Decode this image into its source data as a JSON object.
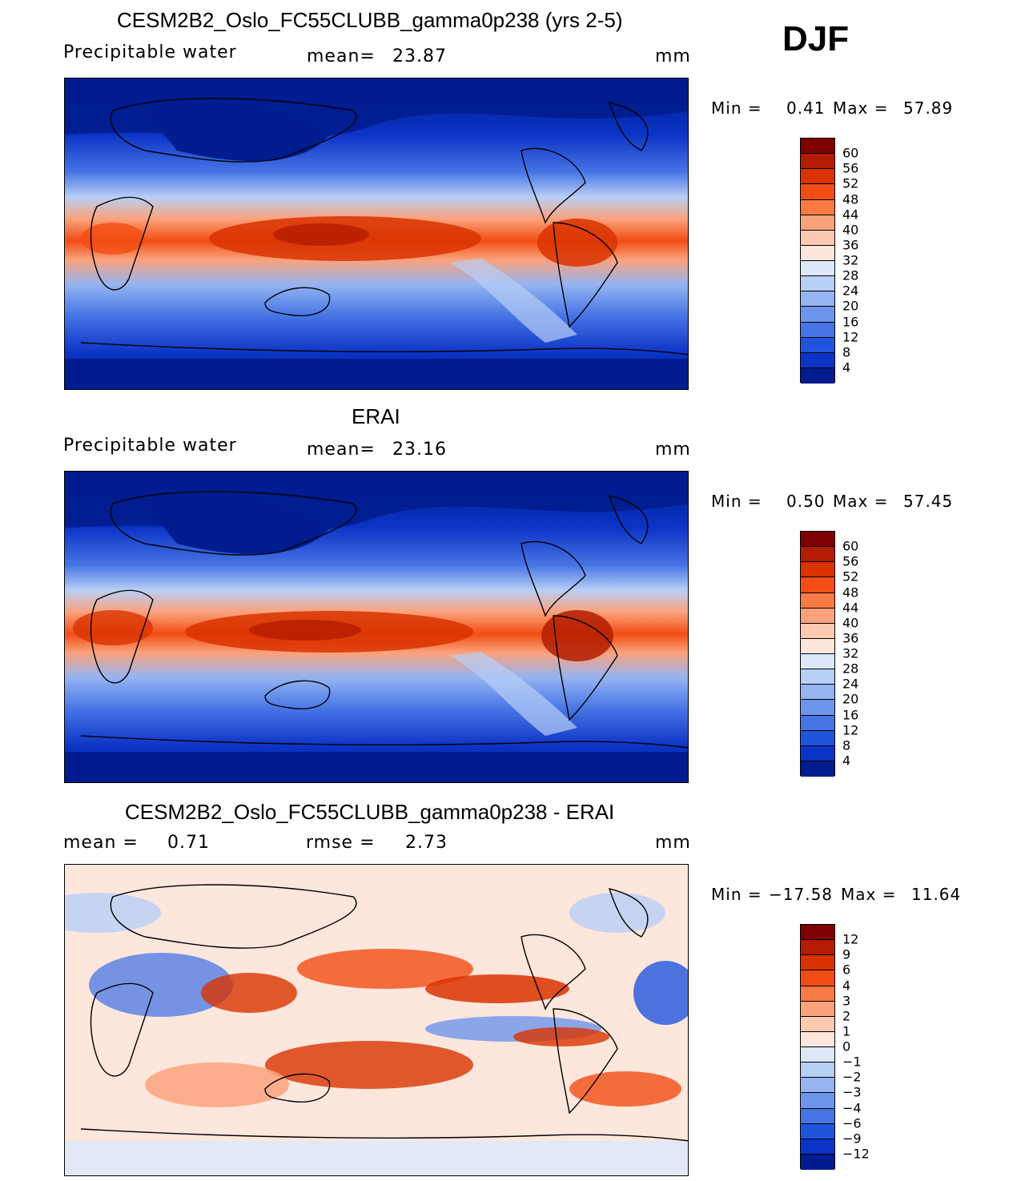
{
  "season": "DJF",
  "panels": [
    {
      "title": "CESM2B2_Oslo_FC55CLUBB_gamma0p238 (yrs 2-5)",
      "variable": "Precipitable water",
      "stat_label": "mean=",
      "stat_value": "23.87",
      "units": "mm",
      "min_label": "Min =",
      "min_value": "0.41",
      "max_label": "Max =",
      "max_value": "57.89",
      "colorbar_labels": [
        "60",
        "56",
        "52",
        "48",
        "44",
        "40",
        "36",
        "32",
        "28",
        "24",
        "20",
        "16",
        "12",
        "8",
        "4"
      ],
      "colors": [
        "#7e0000",
        "#b31c00",
        "#d93300",
        "#f24d14",
        "#fa7a45",
        "#fba27c",
        "#fbcab0",
        "#fde6dc",
        "#dce8fa",
        "#b8cff6",
        "#94b4f2",
        "#6e95ec",
        "#4775e5",
        "#1f55dd",
        "#0b34c6",
        "#001c8e"
      ]
    },
    {
      "title": "ERAI",
      "variable": "Precipitable water",
      "stat_label": "mean=",
      "stat_value": "23.16",
      "units": "mm",
      "min_label": "Min =",
      "min_value": "0.50",
      "max_label": "Max =",
      "max_value": "57.45",
      "colorbar_labels": [
        "60",
        "56",
        "52",
        "48",
        "44",
        "40",
        "36",
        "32",
        "28",
        "24",
        "20",
        "16",
        "12",
        "8",
        "4"
      ],
      "colors": [
        "#7e0000",
        "#b31c00",
        "#d93300",
        "#f24d14",
        "#fa7a45",
        "#fba27c",
        "#fbcab0",
        "#fde6dc",
        "#dce8fa",
        "#b8cff6",
        "#94b4f2",
        "#6e95ec",
        "#4775e5",
        "#1f55dd",
        "#0b34c6",
        "#001c8e"
      ]
    },
    {
      "title": "CESM2B2_Oslo_FC55CLUBB_gamma0p238 - ERAI",
      "stat_label": "mean =",
      "stat_value": "0.71",
      "stat2_label": "rmse =",
      "stat2_value": "2.73",
      "units": "mm",
      "min_label": "Min =",
      "min_value": "−17.58",
      "max_label": "Max =",
      "max_value": "11.64",
      "colorbar_labels": [
        "12",
        "9",
        "6",
        "4",
        "3",
        "2",
        "1",
        "0",
        "−1",
        "−2",
        "−3",
        "−4",
        "−6",
        "−9",
        "−12"
      ],
      "colors": [
        "#7e0000",
        "#b31c00",
        "#d93300",
        "#f24d14",
        "#fa7a45",
        "#fba27c",
        "#fbcab0",
        "#fde6dc",
        "#dce8fa",
        "#b8cff6",
        "#94b4f2",
        "#6e95ec",
        "#4775e5",
        "#1f55dd",
        "#0b34c6",
        "#001c8e"
      ]
    }
  ]
}
